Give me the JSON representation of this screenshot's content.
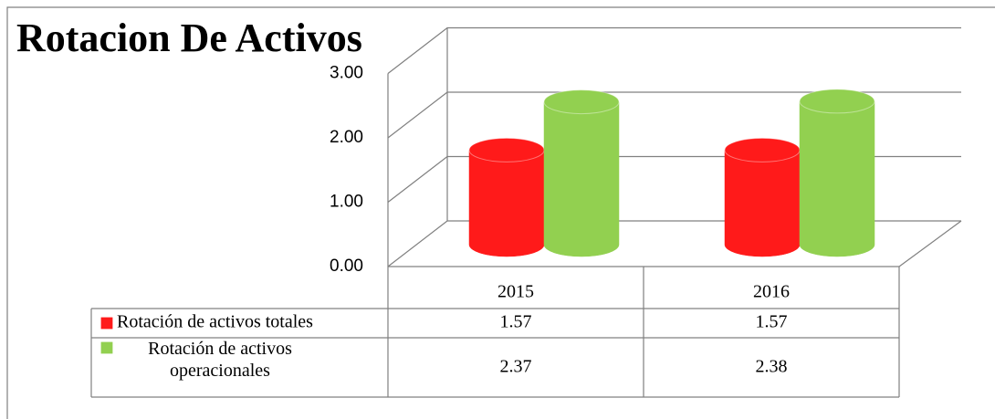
{
  "chart_data": {
    "type": "bar",
    "title": "Rotacion De Activos",
    "categories": [
      "2015",
      "2016"
    ],
    "series": [
      {
        "name": "Rotación de activos totales",
        "color": "#ff1a1a",
        "values": [
          1.57,
          1.57
        ]
      },
      {
        "name": "Rotación de activos operacionales",
        "color": "#92d050",
        "values": [
          2.37,
          2.38
        ]
      }
    ],
    "ylim": [
      0,
      3
    ],
    "yticks": [
      {
        "value": 0,
        "label": "0.00"
      },
      {
        "value": 1,
        "label": "1.00"
      },
      {
        "value": 2,
        "label": "2.00"
      },
      {
        "value": 3,
        "label": "3.00"
      }
    ],
    "grid": true,
    "data_table": true
  }
}
